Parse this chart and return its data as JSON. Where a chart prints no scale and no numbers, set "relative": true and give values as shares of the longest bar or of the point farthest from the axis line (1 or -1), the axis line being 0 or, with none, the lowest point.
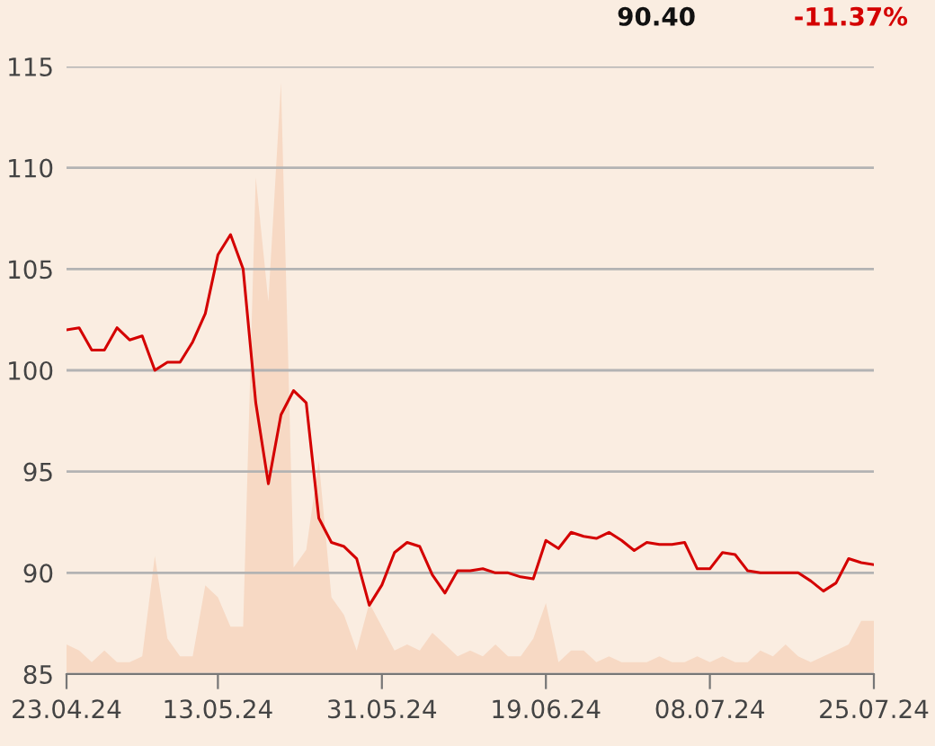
{
  "chart_data": [
    {
      "type": "area",
      "relative": true,
      "categories": [
        null,
        null,
        null,
        null,
        null,
        null,
        null,
        null,
        null,
        null,
        null,
        null,
        null,
        null,
        null,
        null,
        null,
        null,
        null,
        null,
        null,
        null,
        null,
        null,
        null,
        null,
        null,
        null,
        null,
        null,
        null,
        null,
        null,
        null,
        null,
        null,
        null,
        null,
        null,
        null,
        null,
        null,
        null,
        null,
        null,
        null,
        null,
        null,
        null,
        null,
        null,
        null,
        null,
        null,
        null,
        null,
        null,
        null,
        null,
        null,
        null,
        null,
        null,
        null,
        null
      ],
      "series": [
        {
          "color": "#f7d9c4",
          "values": [
            0.05,
            0.04,
            0.02,
            0.04,
            0.02,
            0.02,
            0.03,
            0.2,
            0.06,
            0.03,
            0.03,
            0.15,
            0.13,
            0.08,
            0.08,
            0.84,
            0.63,
            1.0,
            0.18,
            0.21,
            0.36,
            0.13,
            0.1,
            0.04,
            0.12,
            0.08,
            0.04,
            0.05,
            0.04,
            0.07,
            0.05,
            0.03,
            0.04,
            0.03,
            0.05,
            0.03,
            0.03,
            0.06,
            0.12,
            0.02,
            0.04,
            0.04,
            0.02,
            0.03,
            0.02,
            0.02,
            0.02,
            0.03,
            0.02,
            0.02,
            0.03,
            0.02,
            0.03,
            0.02,
            0.02,
            0.04,
            0.03,
            0.05,
            0.03,
            0.02,
            0.03,
            0.04,
            0.05,
            0.09,
            0.09
          ]
        }
      ]
    },
    {
      "type": "line",
      "categories": [
        "23.04.24",
        null,
        null,
        null,
        null,
        null,
        null,
        null,
        null,
        null,
        null,
        null,
        "13.05.24",
        null,
        null,
        null,
        null,
        null,
        null,
        null,
        null,
        null,
        null,
        null,
        null,
        "31.05.24",
        null,
        null,
        null,
        null,
        null,
        null,
        null,
        null,
        null,
        null,
        null,
        null,
        "19.06.24",
        null,
        null,
        null,
        null,
        null,
        null,
        null,
        null,
        null,
        null,
        null,
        null,
        "08.07.24",
        null,
        null,
        null,
        null,
        null,
        null,
        null,
        null,
        null,
        null,
        null,
        null,
        "25.07.24"
      ],
      "series": [
        {
          "color": "#d40000",
          "values": [
            102.0,
            102.1,
            101.0,
            101.0,
            102.1,
            101.5,
            101.7,
            100.0,
            100.4,
            100.4,
            101.4,
            102.8,
            105.7,
            106.7,
            105.0,
            98.4,
            94.4,
            97.8,
            99.0,
            98.4,
            92.7,
            91.5,
            91.3,
            90.7,
            88.4,
            89.4,
            91.0,
            91.5,
            91.3,
            89.9,
            89.0,
            90.1,
            90.1,
            90.2,
            90.0,
            90.0,
            89.8,
            89.7,
            91.6,
            91.2,
            92.0,
            91.8,
            91.7,
            92.0,
            91.6,
            91.1,
            91.5,
            91.4,
            91.4,
            91.5,
            90.2,
            90.2,
            91.0,
            90.9,
            90.1,
            90.0,
            90.0,
            90.0,
            90.0,
            89.6,
            89.1,
            89.5,
            90.7,
            90.5,
            90.4
          ]
        }
      ],
      "ylim": [
        85,
        115
      ],
      "yticks": [
        85,
        90,
        95,
        100,
        105,
        110,
        115
      ],
      "grid": "y",
      "annotations": [
        "90.40",
        "-11.37%"
      ]
    }
  ]
}
